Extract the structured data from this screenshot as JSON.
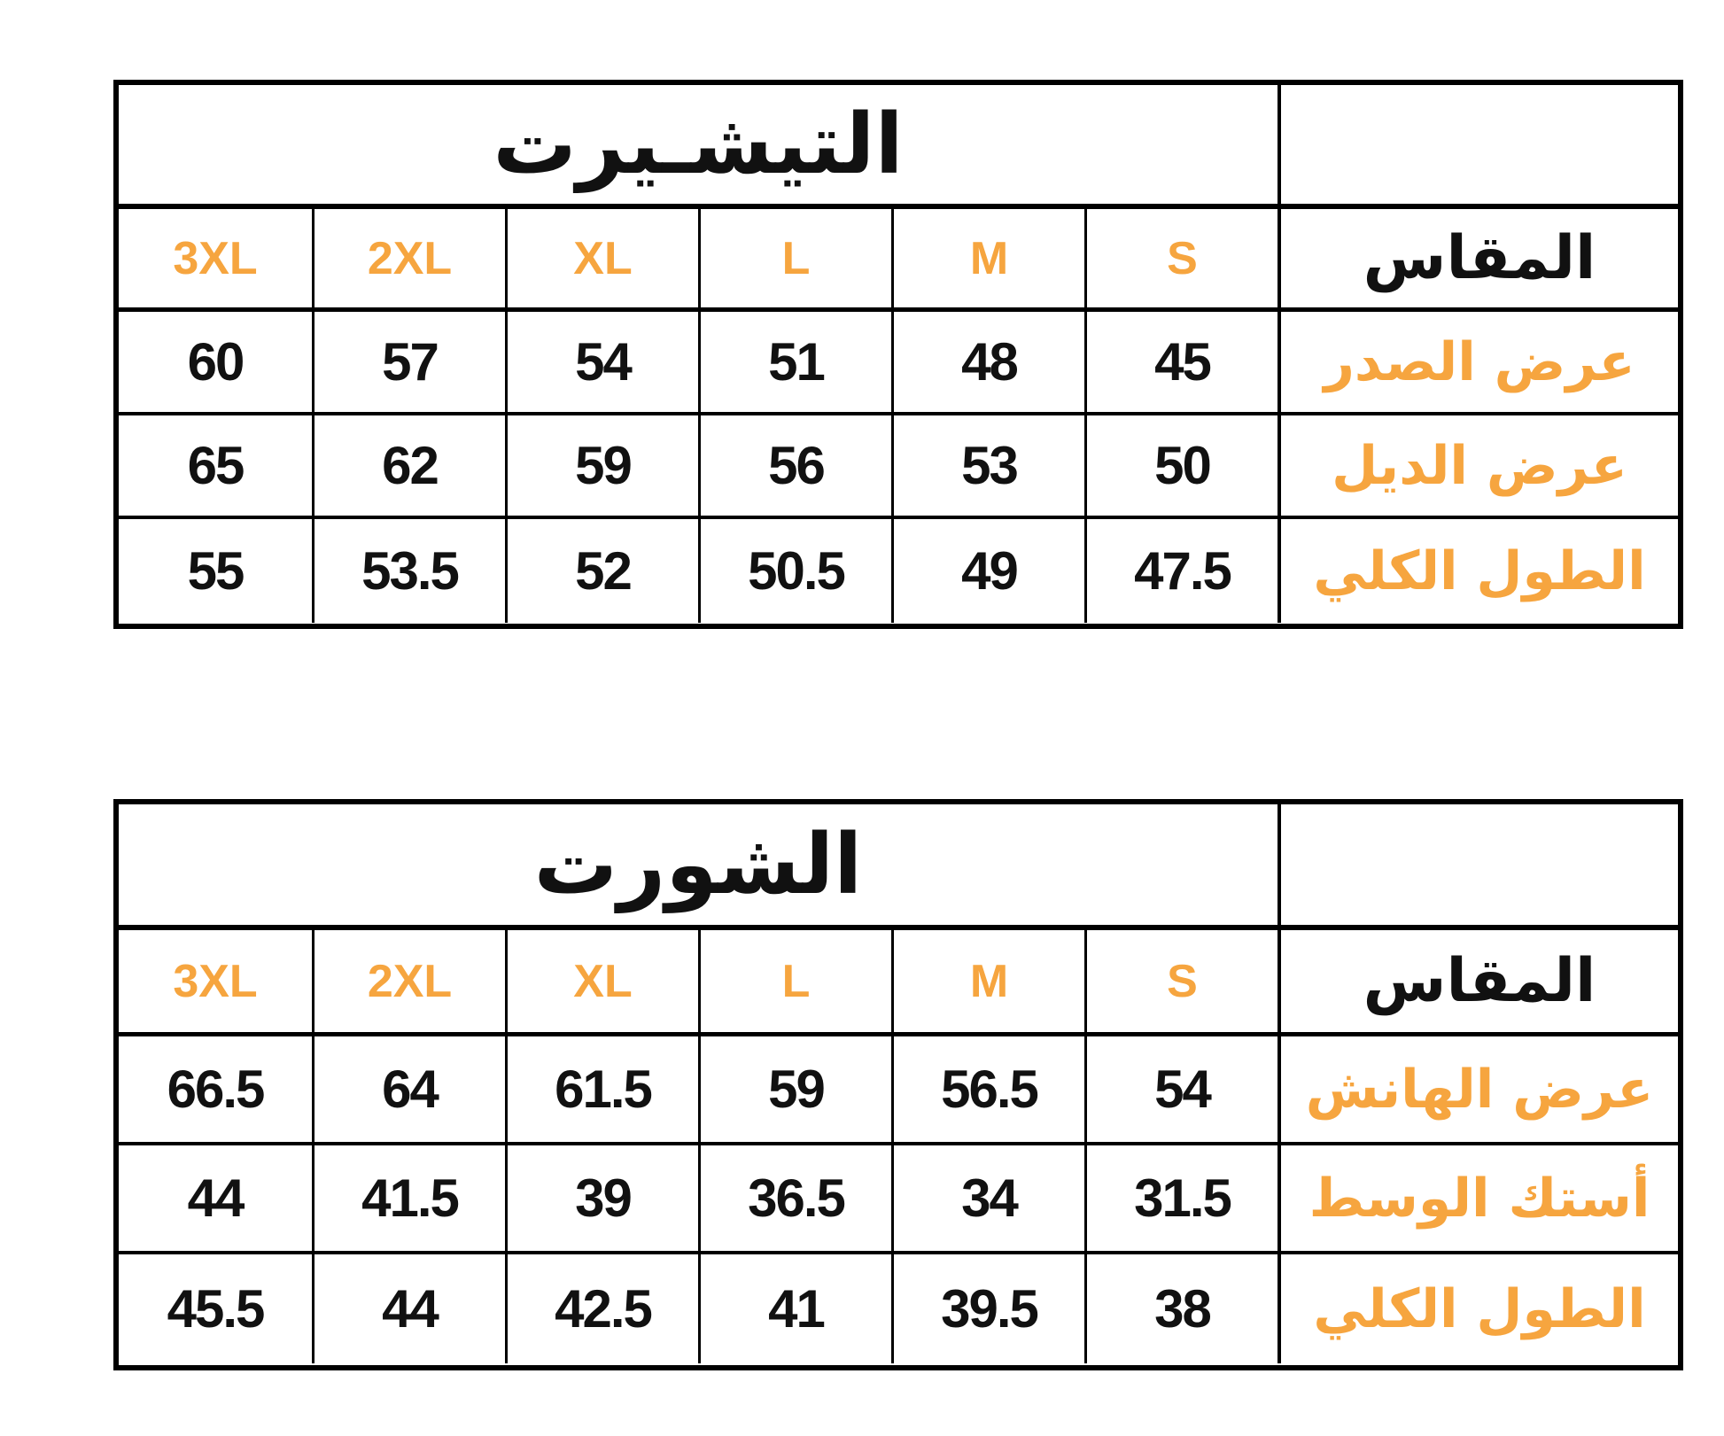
{
  "page": {
    "background": "#ffffff",
    "direction": "rtl",
    "description": "Two Arabic clothing size-chart tables"
  },
  "colors": {
    "accent_orange": "#F6A53F",
    "text_black": "#111111",
    "border_black": "#000000"
  },
  "tables": [
    {
      "title": "التيشـيرت",
      "size_header_label": "المقاس",
      "sizes": [
        "3XL",
        "2XL",
        "XL",
        "L",
        "M",
        "S"
      ],
      "rows": [
        {
          "label": "عرض الصدر",
          "values": [
            "60",
            "57",
            "54",
            "51",
            "48",
            "45"
          ]
        },
        {
          "label": "عرض الديل",
          "values": [
            "65",
            "62",
            "59",
            "56",
            "53",
            "50"
          ]
        },
        {
          "label": "الطول الكلي",
          "values": [
            "55",
            "53.5",
            "52",
            "50.5",
            "49",
            "47.5"
          ]
        }
      ]
    },
    {
      "title": "الشورت",
      "size_header_label": "المقاس",
      "sizes": [
        "3XL",
        "2XL",
        "XL",
        "L",
        "M",
        "S"
      ],
      "rows": [
        {
          "label": "عرض الهانش",
          "values": [
            "66.5",
            "64",
            "61.5",
            "59",
            "56.5",
            "54"
          ]
        },
        {
          "label": "أستك الوسط",
          "values": [
            "44",
            "41.5",
            "39",
            "36.5",
            "34",
            "31.5"
          ]
        },
        {
          "label": "الطول الكلي",
          "values": [
            "45.5",
            "44",
            "42.5",
            "41",
            "39.5",
            "38"
          ]
        }
      ]
    }
  ]
}
